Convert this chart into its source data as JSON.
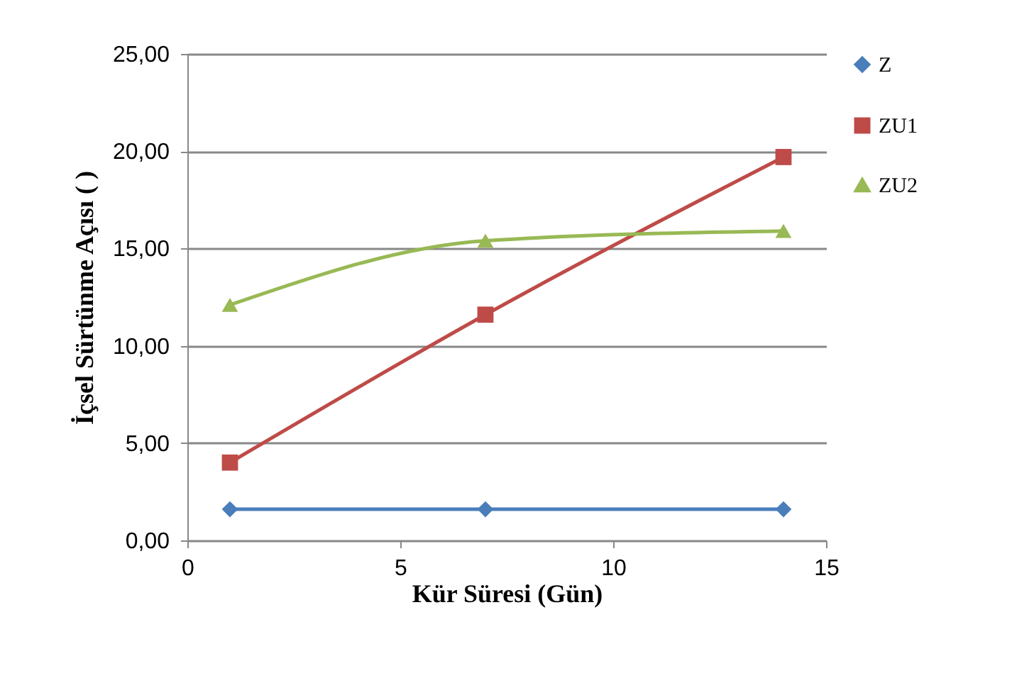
{
  "chart_data": {
    "type": "line",
    "xlabel": "Kür Süresi (Gün)",
    "ylabel": "İçsel Sürtünme Açısı  ( )",
    "xlim": [
      0,
      15
    ],
    "xticks": [
      0,
      5,
      10,
      15
    ],
    "ylim": [
      0,
      25
    ],
    "yticks": [
      {
        "value": 0,
        "label": "0,00"
      },
      {
        "value": 5,
        "label": "5,00"
      },
      {
        "value": 10,
        "label": "10,00"
      },
      {
        "value": 15,
        "label": "15,00"
      },
      {
        "value": 20,
        "label": "20,00"
      },
      {
        "value": 25,
        "label": "25,00"
      }
    ],
    "grid": "y",
    "legend": "right",
    "series": [
      {
        "name": "Z",
        "color": "#4a7ebb",
        "marker": "diamond",
        "x": [
          1,
          7,
          14
        ],
        "values": [
          1.6,
          1.6,
          1.6
        ]
      },
      {
        "name": "ZU1",
        "color": "#be4b48",
        "marker": "square",
        "x": [
          1,
          7,
          14
        ],
        "values": [
          4.0,
          11.6,
          19.7
        ]
      },
      {
        "name": "ZU2",
        "color": "#98b954",
        "marker": "triangle",
        "x": [
          1,
          7,
          14
        ],
        "values": [
          12.1,
          15.4,
          15.9
        ]
      }
    ]
  }
}
